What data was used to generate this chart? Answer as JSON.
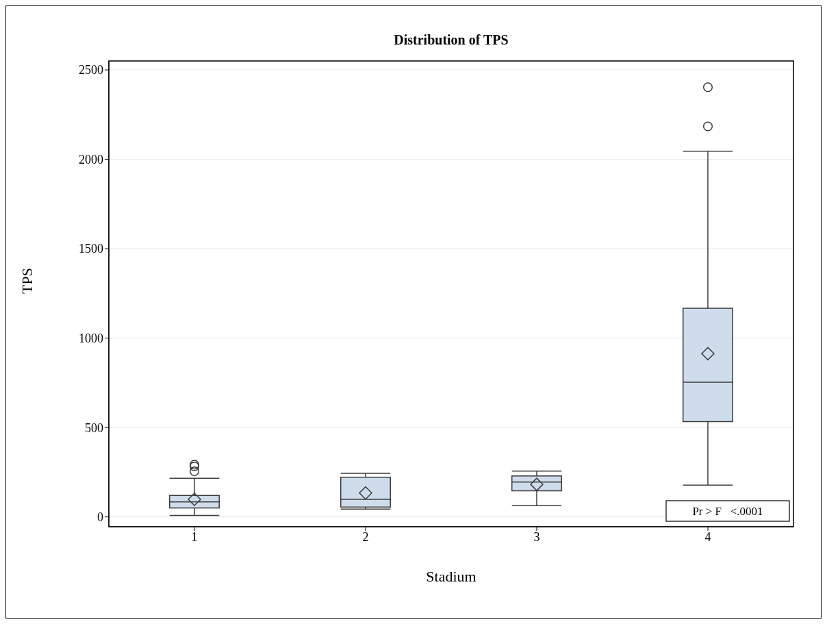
{
  "chart_data": {
    "type": "box",
    "title": "Distribution of TPS",
    "xlabel": "Stadium",
    "ylabel": "TPS",
    "categories": [
      "1",
      "2",
      "3",
      "4"
    ],
    "boxes": [
      {
        "low": 8,
        "q1": 50,
        "median": 84,
        "q3": 120,
        "high": 216,
        "mean": 98,
        "outliers": [
          255,
          282,
          292
        ]
      },
      {
        "low": 44,
        "q1": 55,
        "median": 98,
        "q3": 222,
        "high": 244,
        "mean": 134
      },
      {
        "low": 63,
        "q1": 146,
        "median": 195,
        "q3": 229,
        "high": 256,
        "mean": 182
      },
      {
        "low": 178,
        "q1": 533,
        "median": 753,
        "q3": 1167,
        "high": 2045,
        "mean": 913,
        "outliers": [
          2184,
          2403
        ]
      }
    ],
    "color": "#cfdcec",
    "ylim": [
      -55,
      2550
    ],
    "yticks": [
      0,
      500,
      1000,
      1500,
      2000,
      2500
    ],
    "grid": "y",
    "marker": "diamond",
    "annotations": [
      "Pr > F   <.0001"
    ]
  }
}
